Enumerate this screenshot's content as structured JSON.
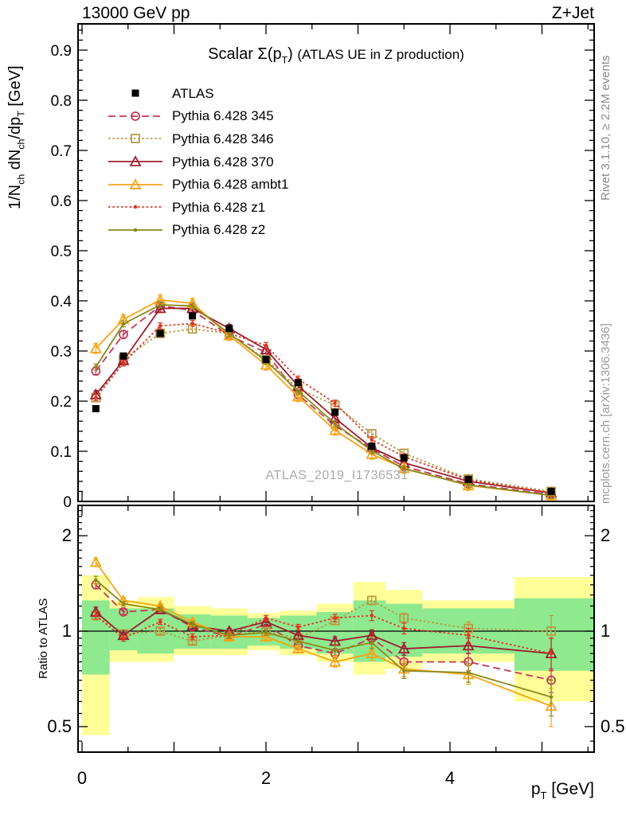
{
  "header": {
    "left_title": "13000 GeV pp",
    "right_title": "Z+Jet"
  },
  "right_margin": {
    "top": "Rivet 3.1.10, ≥ 2.2M events",
    "bottom": "mcplots.cern.ch [arXiv:1306.3436]"
  },
  "watermark": "ATLAS_2019_I1736531",
  "labels": {
    "title_segments": [
      {
        "t": "Scalar Σ(p"
      },
      {
        "t": "T",
        "sub": true
      },
      {
        "t": ") "
      },
      {
        "t": "(ATLAS UE in Z production)",
        "small": true
      }
    ],
    "ylabel_segments": [
      {
        "t": "1/N"
      },
      {
        "t": "ch",
        "sub": true
      },
      {
        "t": " dN"
      },
      {
        "t": "ch",
        "sub": true
      },
      {
        "t": "/dp"
      },
      {
        "t": "T",
        "sub": true
      },
      {
        "t": " [GeV]"
      }
    ],
    "xlabel_segments": [
      {
        "t": "p"
      },
      {
        "t": "T",
        "sub": true
      },
      {
        "t": " [GeV]"
      }
    ]
  },
  "chart_data": {
    "type": "line",
    "title": "Scalar Σ(p_T) (ATLAS UE in Z production)",
    "xlabel": "p_T [GeV]",
    "ylabel": "1/N_ch dN_ch/dp_T [GeV]",
    "ratio_ylabel": "Ratio to ATLAS",
    "xlim": [
      0,
      5.57
    ],
    "ylim_main": [
      0,
      0.95
    ],
    "ylim_ratio": [
      0.42,
      2.49
    ],
    "ratio_scale": "log",
    "grid": false,
    "legend_position": "top-left-inside",
    "x_ticks_labeled": [
      0,
      2,
      4
    ],
    "y_ticks_labeled_main": [
      0,
      0.1,
      0.2,
      0.3,
      0.4,
      0.5,
      0.6,
      0.7,
      0.8,
      0.9
    ],
    "y_ticks_labeled_ratio": [
      0.5,
      1,
      2
    ],
    "x": [
      0.15,
      0.45,
      0.85,
      1.2,
      1.6,
      2.0,
      2.35,
      2.75,
      3.15,
      3.5,
      4.2,
      5.1
    ],
    "bin_edges": [
      0,
      0.3,
      0.6,
      1.0,
      1.4,
      1.8,
      2.15,
      2.55,
      2.95,
      3.3,
      3.7,
      4.7,
      5.57
    ],
    "series": [
      {
        "name": "ATLAS",
        "color": "#000000",
        "line": "none",
        "marker": "square-filled",
        "err": 0.005,
        "values": [
          0.185,
          0.29,
          0.335,
          0.37,
          0.345,
          0.283,
          0.237,
          0.178,
          0.11,
          0.087,
          0.044,
          0.02
        ]
      },
      {
        "name": "Pythia 6.428 345",
        "color": "#c23a56",
        "line": "dashed",
        "marker": "circle-open",
        "err": 0.008,
        "values": [
          0.26,
          0.333,
          0.39,
          0.381,
          0.331,
          0.297,
          0.213,
          0.151,
          0.105,
          0.07,
          0.035,
          0.014
        ],
        "ratio": [
          1.4,
          1.15,
          1.17,
          1.03,
          0.96,
          1.05,
          0.9,
          0.85,
          0.95,
          0.8,
          0.8,
          0.7
        ],
        "ratio_err": [
          0.04,
          0.02,
          0.02,
          0.02,
          0.02,
          0.02,
          0.02,
          0.03,
          0.04,
          0.04,
          0.05,
          0.06
        ]
      },
      {
        "name": "Pythia 6.428 346",
        "color": "#b89a45",
        "line": "dotted",
        "marker": "square-open",
        "err": 0.008,
        "values": [
          0.207,
          0.284,
          0.335,
          0.344,
          0.335,
          0.283,
          0.225,
          0.192,
          0.135,
          0.096,
          0.045,
          0.02
        ],
        "ratio": [
          1.12,
          0.98,
          1.0,
          0.93,
          0.97,
          1.0,
          0.95,
          1.08,
          1.25,
          1.1,
          1.02,
          1.0
        ],
        "ratio_err": [
          0.03,
          0.02,
          0.02,
          0.02,
          0.02,
          0.02,
          0.02,
          0.03,
          0.04,
          0.04,
          0.05,
          0.12
        ]
      },
      {
        "name": "Pythia 6.428 370",
        "color": "#9c1f2e",
        "line": "solid",
        "marker": "triangle-open",
        "err": 0.008,
        "values": [
          0.213,
          0.281,
          0.385,
          0.385,
          0.345,
          0.303,
          0.23,
          0.166,
          0.107,
          0.077,
          0.04,
          0.017
        ],
        "ratio": [
          1.15,
          0.97,
          1.17,
          1.04,
          1.0,
          1.07,
          0.97,
          0.93,
          0.97,
          0.88,
          0.9,
          0.85
        ],
        "ratio_err": [
          0.04,
          0.02,
          0.02,
          0.02,
          0.02,
          0.02,
          0.02,
          0.03,
          0.04,
          0.04,
          0.05,
          0.1
        ]
      },
      {
        "name": "Pythia 6.428 ambt1",
        "color": "#f5a516",
        "line": "solid",
        "marker": "triangle-open",
        "err": 0.01,
        "values": [
          0.305,
          0.363,
          0.402,
          0.395,
          0.331,
          0.272,
          0.209,
          0.142,
          0.094,
          0.066,
          0.032,
          0.012
        ],
        "ratio": [
          1.65,
          1.25,
          1.2,
          1.07,
          0.96,
          0.96,
          0.88,
          0.8,
          0.85,
          0.76,
          0.73,
          0.58
        ],
        "ratio_err": [
          0.05,
          0.02,
          0.02,
          0.02,
          0.02,
          0.02,
          0.02,
          0.03,
          0.04,
          0.04,
          0.05,
          0.08
        ]
      },
      {
        "name": "Pythia 6.428 z1",
        "color": "#e23222",
        "line": "dotted",
        "marker": "dot",
        "err": 0.006,
        "values": [
          0.207,
          0.276,
          0.35,
          0.355,
          0.335,
          0.311,
          0.244,
          0.196,
          0.123,
          0.089,
          0.043,
          0.017
        ],
        "ratio": [
          1.12,
          0.95,
          1.07,
          0.96,
          0.97,
          1.1,
          1.03,
          1.1,
          1.12,
          1.02,
          0.97,
          0.85
        ],
        "ratio_err": [
          0.03,
          0.02,
          0.02,
          0.02,
          0.02,
          0.02,
          0.02,
          0.03,
          0.04,
          0.04,
          0.05,
          0.1
        ]
      },
      {
        "name": "Pythia 6.428 z2",
        "color": "#8a8a1a",
        "line": "solid",
        "marker": "dot",
        "err": 0.006,
        "values": [
          0.268,
          0.354,
          0.392,
          0.39,
          0.335,
          0.28,
          0.22,
          0.155,
          0.101,
          0.065,
          0.033,
          0.012
        ],
        "ratio": [
          1.45,
          1.22,
          1.17,
          1.05,
          0.97,
          0.99,
          0.93,
          0.87,
          0.92,
          0.75,
          0.74,
          0.62
        ],
        "ratio_err": [
          0.04,
          0.02,
          0.02,
          0.02,
          0.02,
          0.02,
          0.02,
          0.03,
          0.04,
          0.04,
          0.05,
          0.08
        ]
      }
    ],
    "bands": {
      "yellow": {
        "color": "#ffff99",
        "ranges": [
          [
            0.47,
            1.5
          ],
          [
            0.8,
            1.25
          ],
          [
            0.8,
            1.28
          ],
          [
            0.84,
            1.2
          ],
          [
            0.84,
            1.18
          ],
          [
            0.87,
            1.14
          ],
          [
            0.84,
            1.16
          ],
          [
            0.8,
            1.22
          ],
          [
            0.73,
            1.43
          ],
          [
            0.76,
            1.35
          ],
          [
            0.8,
            1.25
          ],
          [
            0.6,
            1.48
          ]
        ]
      },
      "green": {
        "color": "#8fe98f",
        "ranges": [
          [
            0.73,
            1.25
          ],
          [
            0.87,
            1.18
          ],
          [
            0.85,
            1.18
          ],
          [
            0.88,
            1.13
          ],
          [
            0.88,
            1.12
          ],
          [
            0.9,
            1.1
          ],
          [
            0.88,
            1.12
          ],
          [
            0.85,
            1.15
          ],
          [
            0.8,
            1.25
          ],
          [
            0.83,
            1.22
          ],
          [
            0.85,
            1.18
          ],
          [
            0.75,
            1.27
          ]
        ]
      }
    },
    "reference_line_ratio": 1
  }
}
